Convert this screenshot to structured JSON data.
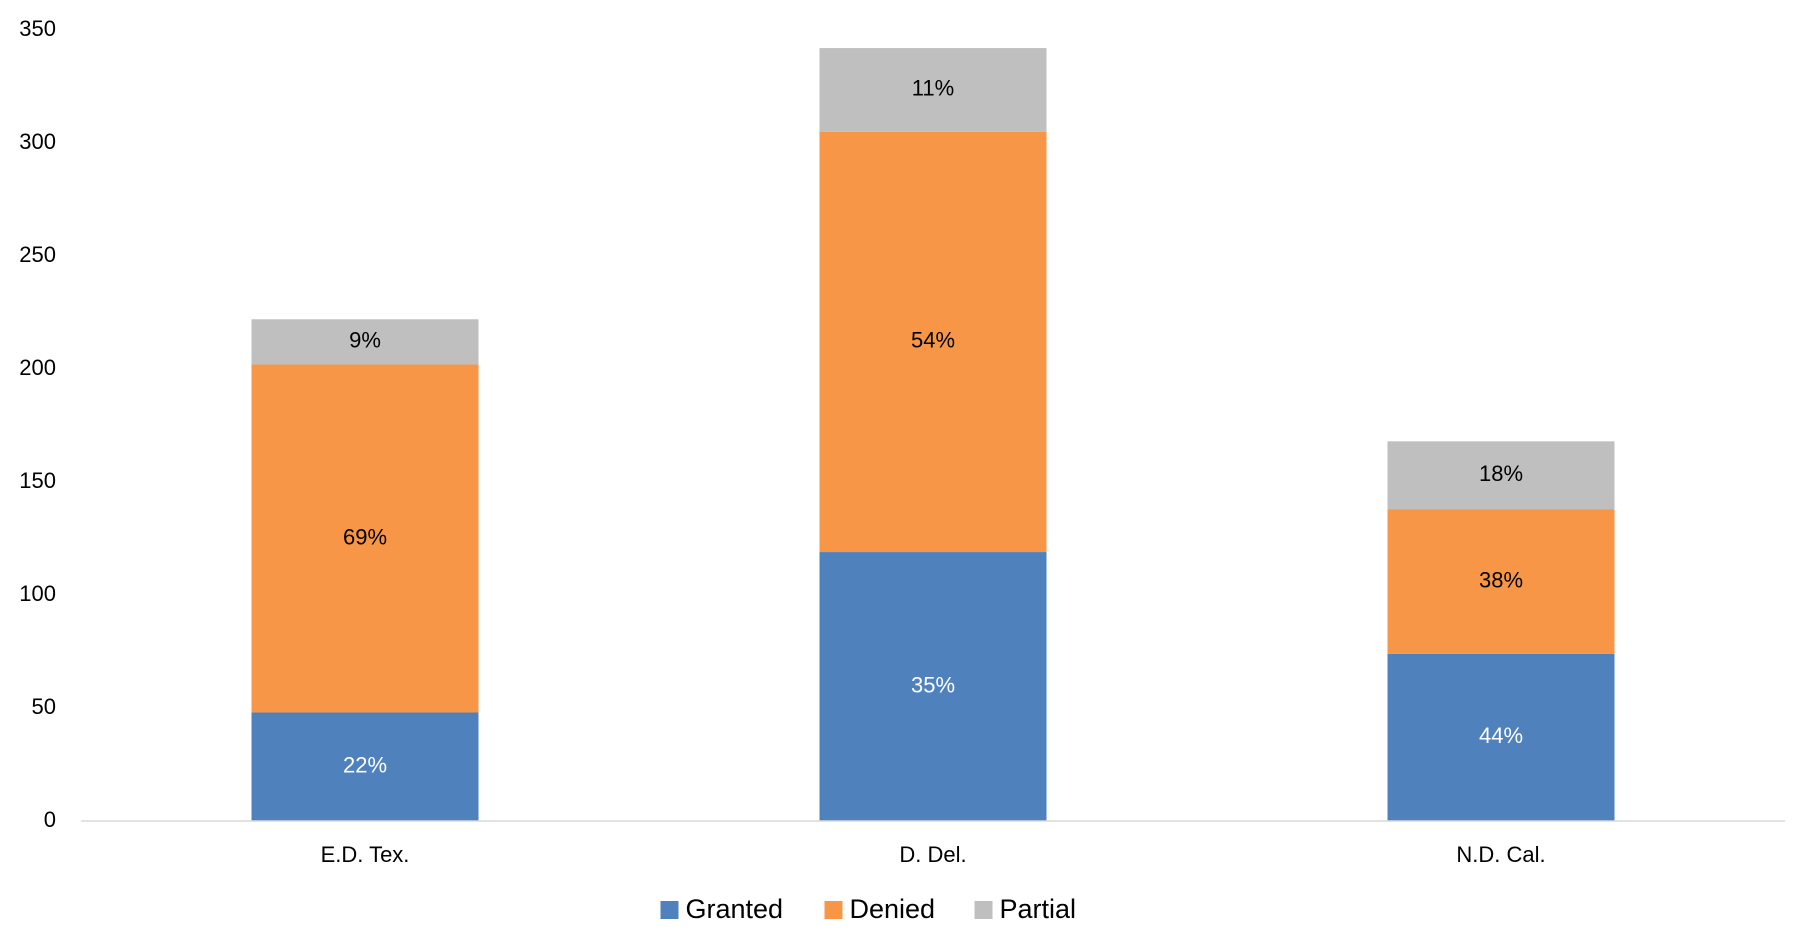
{
  "chart_data": {
    "type": "stacked_bar",
    "categories": [
      "E.D. Tex.",
      "D. Del.",
      "N.D. Cal."
    ],
    "series": [
      {
        "name": "Granted",
        "color": "#4f81bd",
        "values": [
          48,
          119,
          74
        ],
        "value_labels": [
          "22%",
          "35%",
          "44%"
        ]
      },
      {
        "name": "Denied",
        "color": "#f79646",
        "values": [
          154,
          186,
          64
        ],
        "value_labels": [
          "69%",
          "54%",
          "38%"
        ]
      },
      {
        "name": "Partial",
        "color": "#bfbfbf",
        "values": [
          20,
          37,
          30
        ],
        "value_labels": [
          "9%",
          "11%",
          "18%"
        ]
      }
    ],
    "ylim": [
      0,
      350
    ],
    "yticks": [
      0,
      50,
      100,
      150,
      200,
      250,
      300,
      350
    ],
    "grid": false,
    "legend": "bottom"
  }
}
